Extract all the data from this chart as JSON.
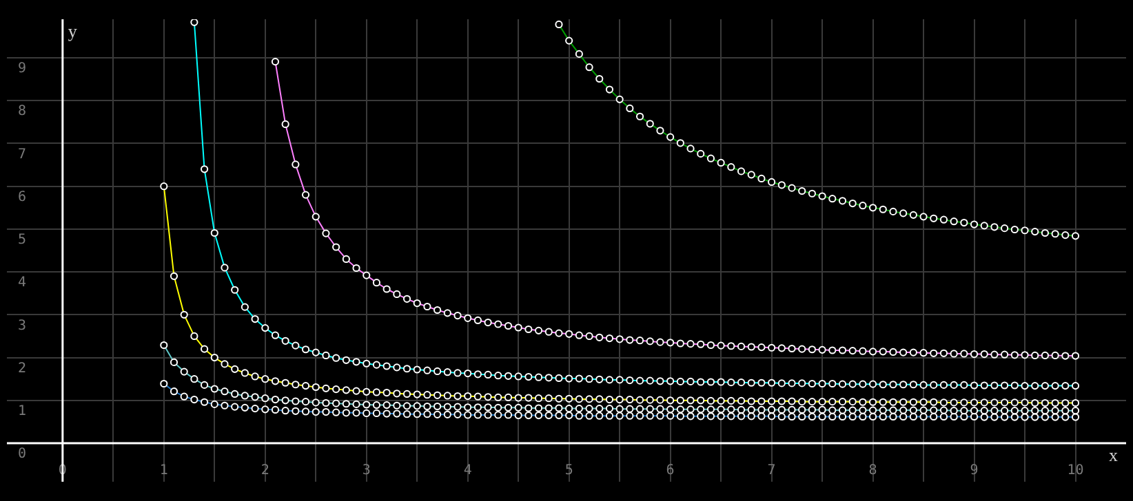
{
  "chart_data": {
    "type": "line",
    "xlabel": "x",
    "ylabel": "y",
    "marker": "circle",
    "grid": true,
    "xlim": [
      -0.55,
      10.5
    ],
    "ylim": [
      -0.9,
      9.9
    ],
    "xticks": [
      0,
      {
        "value": 0.5,
        "label": null
      },
      1,
      {
        "value": 1.5,
        "label": null
      },
      2,
      {
        "value": 2.5,
        "label": null
      },
      3,
      {
        "value": 3.5,
        "label": null
      },
      4,
      {
        "value": 4.5,
        "label": null
      },
      5,
      {
        "value": 5.5,
        "label": null
      },
      6,
      {
        "value": 6.5,
        "label": null
      },
      7,
      {
        "value": 7.5,
        "label": null
      },
      8,
      {
        "value": 8.5,
        "label": null
      },
      9,
      {
        "value": 9.5,
        "label": null
      },
      10
    ],
    "yticks": [
      0,
      1,
      2,
      3,
      4,
      5,
      6,
      7,
      8,
      9
    ],
    "x": [
      1.0,
      1.1,
      1.2,
      1.3,
      1.4,
      1.5,
      1.6,
      1.7,
      1.8,
      1.9,
      2.0,
      2.1,
      2.2,
      2.3,
      2.4,
      2.5,
      2.6,
      2.7,
      2.8,
      2.9,
      3.0,
      3.1,
      3.2,
      3.3,
      3.4,
      3.5,
      3.6,
      3.7,
      3.8,
      3.9,
      4.0,
      4.1,
      4.2,
      4.3,
      4.4,
      4.5,
      4.6,
      4.7,
      4.8,
      4.9,
      5.0,
      5.1,
      5.2,
      5.3,
      5.4,
      5.5,
      5.6,
      5.7,
      5.8,
      5.9,
      6.0,
      6.1,
      6.2,
      6.3,
      6.4,
      6.5,
      6.6,
      6.7,
      6.8,
      6.9,
      7.0,
      7.1,
      7.2,
      7.3,
      7.4,
      7.5,
      7.6,
      7.7,
      7.8,
      7.9,
      8.0,
      8.1,
      8.2,
      8.3,
      8.4,
      8.5,
      8.6,
      8.7,
      8.8,
      8.9,
      9.0,
      9.1,
      9.2,
      9.3,
      9.4,
      9.5,
      9.6,
      9.7,
      9.8,
      9.9,
      10.0
    ],
    "series": [
      {
        "color": "#ffff00",
        "values": [
          6.0,
          3.9,
          3.0,
          2.5,
          2.2,
          2.0,
          1.85,
          1.73,
          1.64,
          1.56,
          1.5,
          1.45,
          1.41,
          1.37,
          1.34,
          1.31,
          1.28,
          1.26,
          1.24,
          1.22,
          1.2,
          1.19,
          1.18,
          1.16,
          1.15,
          1.14,
          1.13,
          1.12,
          1.11,
          1.1,
          1.1,
          1.09,
          1.08,
          1.07,
          1.07,
          1.06,
          1.06,
          1.05,
          1.05,
          1.04,
          1.04,
          1.03,
          1.03,
          1.03,
          1.02,
          1.02,
          1.02,
          1.01,
          1.01,
          1.01,
          1.0,
          1.0,
          1.0,
          1.0,
          0.99,
          0.99,
          0.99,
          0.99,
          0.98,
          0.98,
          0.98,
          0.98,
          0.98,
          0.97,
          0.97,
          0.97,
          0.97,
          0.97,
          0.97,
          0.96,
          0.96,
          0.96,
          0.96,
          0.96,
          0.96,
          0.96,
          0.96,
          0.95,
          0.95,
          0.95,
          0.95,
          0.95,
          0.95,
          0.95,
          0.95,
          0.95,
          0.94,
          0.94,
          0.94,
          0.94,
          0.94
        ]
      },
      {
        "color": "#5fc8c8",
        "values": [
          2.29,
          1.89,
          1.67,
          1.5,
          1.36,
          1.27,
          1.21,
          1.15,
          1.11,
          1.08,
          1.05,
          1.02,
          1.0,
          0.98,
          0.97,
          0.95,
          0.94,
          0.93,
          0.92,
          0.91,
          0.9,
          0.89,
          0.89,
          0.88,
          0.87,
          0.87,
          0.86,
          0.86,
          0.85,
          0.85,
          0.84,
          0.84,
          0.84,
          0.83,
          0.83,
          0.83,
          0.82,
          0.82,
          0.82,
          0.82,
          0.81,
          0.81,
          0.81,
          0.81,
          0.81,
          0.8,
          0.8,
          0.8,
          0.8,
          0.8,
          0.79,
          0.79,
          0.79,
          0.79,
          0.79,
          0.79,
          0.79,
          0.78,
          0.78,
          0.78,
          0.78,
          0.78,
          0.78,
          0.78,
          0.78,
          0.78,
          0.77,
          0.77,
          0.77,
          0.77,
          0.77,
          0.77,
          0.77,
          0.77,
          0.77,
          0.77,
          0.77,
          0.77,
          0.76,
          0.76,
          0.76,
          0.76,
          0.76,
          0.76,
          0.76,
          0.76,
          0.76,
          0.76,
          0.76,
          0.76,
          0.76
        ]
      },
      {
        "color": "#1e78c8",
        "values": [
          1.39,
          1.21,
          1.09,
          1.02,
          0.96,
          0.91,
          0.88,
          0.85,
          0.83,
          0.81,
          0.79,
          0.78,
          0.76,
          0.75,
          0.74,
          0.73,
          0.73,
          0.72,
          0.71,
          0.71,
          0.7,
          0.7,
          0.69,
          0.69,
          0.68,
          0.68,
          0.68,
          0.67,
          0.67,
          0.67,
          0.66,
          0.66,
          0.66,
          0.66,
          0.66,
          0.65,
          0.65,
          0.65,
          0.65,
          0.65,
          0.65,
          0.64,
          0.64,
          0.64,
          0.64,
          0.64,
          0.64,
          0.64,
          0.64,
          0.64,
          0.64,
          0.63,
          0.63,
          0.63,
          0.63,
          0.63,
          0.63,
          0.63,
          0.63,
          0.63,
          0.63,
          0.62,
          0.62,
          0.62,
          0.62,
          0.62,
          0.62,
          0.62,
          0.62,
          0.62,
          0.62,
          0.62,
          0.62,
          0.62,
          0.62,
          0.62,
          0.62,
          0.62,
          0.62,
          0.62,
          0.62,
          0.61,
          0.61,
          0.61,
          0.61,
          0.61,
          0.61,
          0.61,
          0.61,
          0.61,
          0.61
        ]
      },
      {
        "color": "#00ffff",
        "values": [
          null,
          null,
          null,
          9.83,
          6.4,
          4.91,
          4.1,
          3.58,
          3.18,
          2.9,
          2.69,
          2.52,
          2.39,
          2.28,
          2.19,
          2.12,
          2.05,
          1.99,
          1.94,
          1.9,
          1.86,
          1.83,
          1.8,
          1.77,
          1.74,
          1.72,
          1.7,
          1.68,
          1.66,
          1.64,
          1.63,
          1.61,
          1.6,
          1.58,
          1.57,
          1.56,
          1.55,
          1.54,
          1.53,
          1.52,
          1.51,
          1.51,
          1.5,
          1.49,
          1.48,
          1.48,
          1.47,
          1.46,
          1.46,
          1.45,
          1.45,
          1.44,
          1.44,
          1.43,
          1.43,
          1.43,
          1.42,
          1.42,
          1.41,
          1.41,
          1.41,
          1.4,
          1.4,
          1.4,
          1.39,
          1.39,
          1.39,
          1.38,
          1.38,
          1.38,
          1.38,
          1.37,
          1.37,
          1.37,
          1.37,
          1.36,
          1.36,
          1.36,
          1.36,
          1.36,
          1.35,
          1.35,
          1.35,
          1.35,
          1.35,
          1.34,
          1.34,
          1.34,
          1.34,
          1.34,
          1.34
        ]
      },
      {
        "color": "#ff80ff",
        "values": [
          null,
          null,
          null,
          null,
          null,
          null,
          null,
          null,
          null,
          null,
          null,
          8.91,
          7.45,
          6.51,
          5.8,
          5.29,
          4.9,
          4.58,
          4.3,
          4.09,
          3.92,
          3.75,
          3.6,
          3.48,
          3.37,
          3.27,
          3.19,
          3.11,
          3.04,
          2.98,
          2.92,
          2.87,
          2.82,
          2.78,
          2.74,
          2.7,
          2.66,
          2.63,
          2.6,
          2.57,
          2.55,
          2.52,
          2.5,
          2.47,
          2.45,
          2.43,
          2.41,
          2.4,
          2.38,
          2.36,
          2.35,
          2.33,
          2.32,
          2.31,
          2.29,
          2.28,
          2.27,
          2.26,
          2.25,
          2.24,
          2.23,
          2.22,
          2.21,
          2.2,
          2.19,
          2.18,
          2.17,
          2.17,
          2.16,
          2.15,
          2.14,
          2.14,
          2.13,
          2.12,
          2.12,
          2.11,
          2.1,
          2.1,
          2.09,
          2.09,
          2.08,
          2.08,
          2.07,
          2.07,
          2.06,
          2.06,
          2.05,
          2.05,
          2.05,
          2.04,
          2.04
        ]
      },
      {
        "color": "#00a000",
        "values": [
          null,
          null,
          null,
          null,
          null,
          null,
          null,
          null,
          null,
          null,
          null,
          null,
          null,
          null,
          null,
          null,
          null,
          null,
          null,
          null,
          null,
          null,
          null,
          null,
          null,
          null,
          null,
          null,
          null,
          null,
          null,
          null,
          null,
          null,
          null,
          null,
          null,
          null,
          null,
          9.78,
          9.4,
          9.09,
          8.78,
          8.51,
          8.26,
          8.03,
          7.82,
          7.63,
          7.46,
          7.3,
          7.15,
          7.01,
          6.88,
          6.76,
          6.65,
          6.55,
          6.45,
          6.35,
          6.27,
          6.18,
          6.1,
          6.03,
          5.96,
          5.89,
          5.83,
          5.77,
          5.71,
          5.66,
          5.6,
          5.55,
          5.5,
          5.46,
          5.41,
          5.37,
          5.33,
          5.29,
          5.25,
          5.22,
          5.18,
          5.15,
          5.11,
          5.08,
          5.05,
          5.02,
          4.99,
          4.97,
          4.94,
          4.91,
          4.89,
          4.86,
          4.84
        ]
      }
    ]
  }
}
